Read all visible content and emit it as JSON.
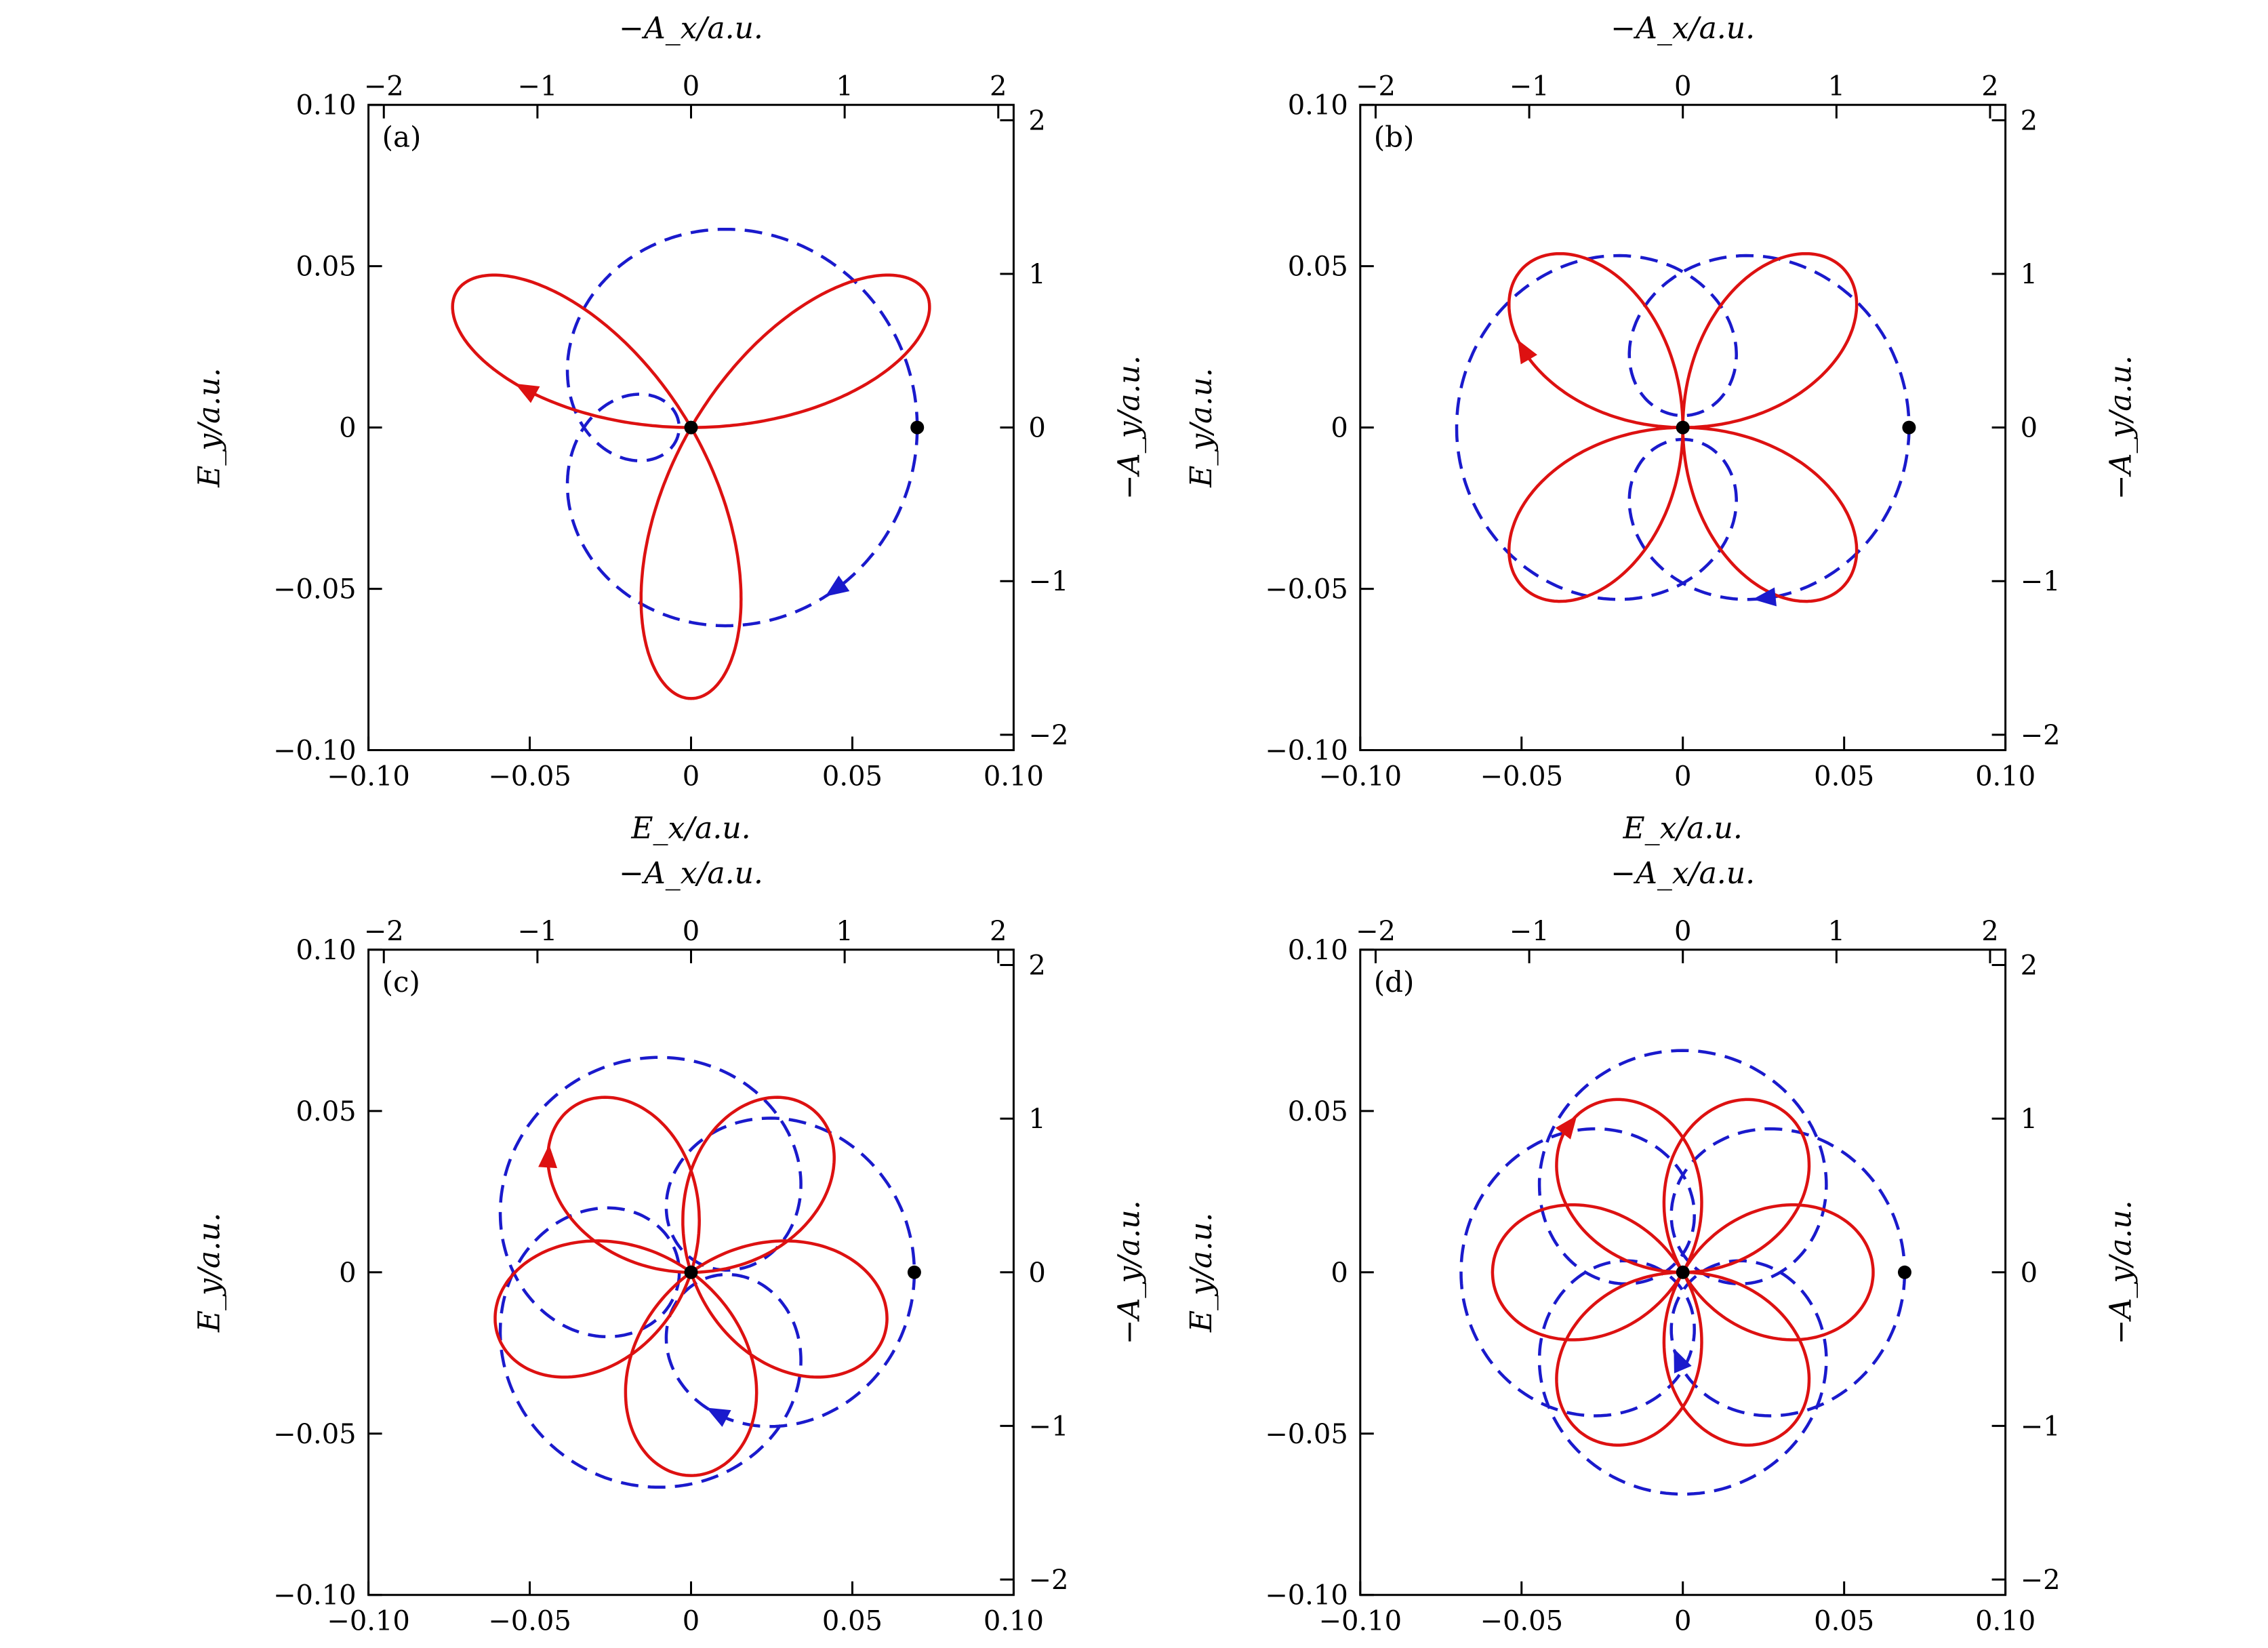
{
  "figure": {
    "panel_count": 4,
    "colors": {
      "E_field": "#dd1111",
      "A_potential": "#1a1acc",
      "frame": "#000000",
      "marker": "#000000"
    }
  },
  "axes": {
    "bottom_label": "E_x/a.u.",
    "left_label": "E_y/a.u.",
    "top_label": "−A_x/a.u.",
    "right_label": "−A_y/a.u.",
    "bottom_ticks": [
      "−0.10",
      "−0.05",
      "0",
      "0.05",
      "0.10"
    ],
    "left_ticks": [
      "−0.10",
      "−0.05",
      "0",
      "0.05",
      "0.10"
    ],
    "top_ticks": [
      "−2",
      "−1",
      "0",
      "1",
      "2"
    ],
    "right_ticks": [
      "−2",
      "−1",
      "0",
      "1",
      "2"
    ]
  },
  "chart_data": [
    {
      "panel": "(a)",
      "type": "line",
      "xlim": [
        -0.1,
        0.1
      ],
      "ylim": [
        -0.1,
        0.1
      ],
      "top_xlim": [
        -2.1,
        2.1
      ],
      "right_ylim": [
        -2.1,
        2.1
      ],
      "symmetry": 1,
      "series": [
        {
          "style": "solid",
          "color": "#dd1111",
          "curve": "E",
          "start_point": [
            0.0,
            0.084
          ]
        },
        {
          "style": "dashed",
          "color": "#1a1acc",
          "curve": "-A",
          "start_point": [
            1.55,
            0.0
          ]
        }
      ]
    },
    {
      "panel": "(b)",
      "type": "line",
      "xlim": [
        -0.1,
        0.1
      ],
      "ylim": [
        -0.1,
        0.1
      ],
      "top_xlim": [
        -2.1,
        2.1
      ],
      "right_ylim": [
        -2.1,
        2.1
      ],
      "symmetry": 2,
      "series": [
        {
          "style": "solid",
          "color": "#dd1111",
          "curve": "E",
          "start_point": [
            0.0,
            0.07
          ]
        },
        {
          "style": "dashed",
          "color": "#1a1acc",
          "curve": "-A",
          "start_point": [
            1.55,
            0.0
          ]
        }
      ]
    },
    {
      "panel": "(c)",
      "type": "line",
      "xlim": [
        -0.1,
        0.1
      ],
      "ylim": [
        -0.1,
        0.1
      ],
      "top_xlim": [
        -2.1,
        2.1
      ],
      "right_ylim": [
        -2.1,
        2.1
      ],
      "symmetry": 3,
      "series": [
        {
          "style": "solid",
          "color": "#dd1111",
          "curve": "E",
          "start_point": [
            0.0,
            0.063
          ]
        },
        {
          "style": "dashed",
          "color": "#1a1acc",
          "curve": "-A",
          "start_point": [
            1.53,
            0.0
          ]
        }
      ]
    },
    {
      "panel": "(d)",
      "type": "line",
      "xlim": [
        -0.1,
        0.1
      ],
      "ylim": [
        -0.1,
        0.1
      ],
      "top_xlim": [
        -2.1,
        2.1
      ],
      "right_ylim": [
        -2.1,
        2.1
      ],
      "symmetry": 4,
      "series": [
        {
          "style": "solid",
          "color": "#dd1111",
          "curve": "E",
          "start_point": [
            0.0,
            0.059
          ]
        },
        {
          "style": "dashed",
          "color": "#1a1acc",
          "curve": "-A",
          "start_point": [
            1.52,
            0.0
          ]
        }
      ]
    }
  ]
}
